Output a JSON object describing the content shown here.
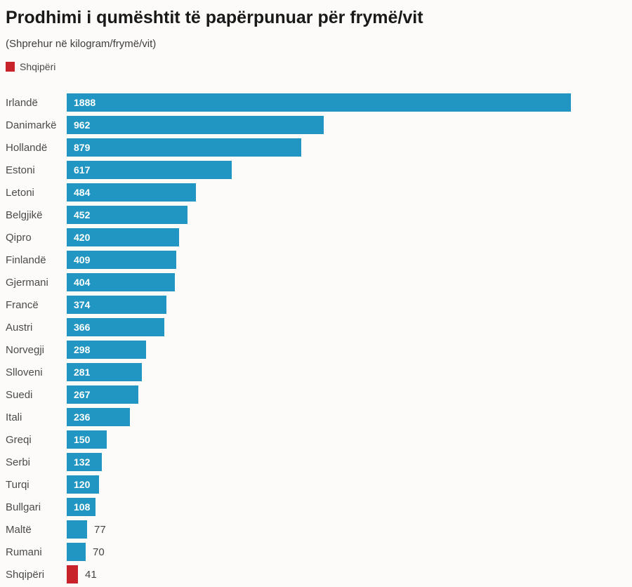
{
  "header": {
    "title": "Prodhimi i qumështit të papërpunuar për frymë/vit",
    "subtitle": "(Shprehur në kilogram/frymë/vit)"
  },
  "legend": {
    "label": "Shqipëri",
    "color": "#c8232b"
  },
  "colors": {
    "bar_default": "#2196c3",
    "bar_highlight": "#c8232b",
    "value_inside": "#ffffff",
    "value_outside": "#454545",
    "background": "#fcfbf9"
  },
  "chart_data": {
    "type": "bar",
    "orientation": "horizontal",
    "title": "Prodhimi i qumështit të papërpunuar për frymë/vit",
    "subtitle": "(Shprehur në kilogram/frymë/vit)",
    "unit": "kilogram/frymë/vit",
    "xlim": [
      0,
      1888
    ],
    "grid": false,
    "legend_position": "top-left",
    "highlight_category": "Shqipëri",
    "categories": [
      "Irlandë",
      "Danimarkë",
      "Hollandë",
      "Estoni",
      "Letoni",
      "Belgjikë",
      "Qipro",
      "Finlandë",
      "Gjermani",
      "Francë",
      "Austri",
      "Norvegji",
      "Slloveni",
      "Suedi",
      "Itali",
      "Greqi",
      "Serbi",
      "Turqi",
      "Bullgari",
      "Maltë",
      "Rumani",
      "Shqipëri"
    ],
    "values": [
      1888,
      962,
      879,
      617,
      484,
      452,
      420,
      409,
      404,
      374,
      366,
      298,
      281,
      267,
      236,
      150,
      132,
      120,
      108,
      77,
      70,
      41
    ]
  }
}
